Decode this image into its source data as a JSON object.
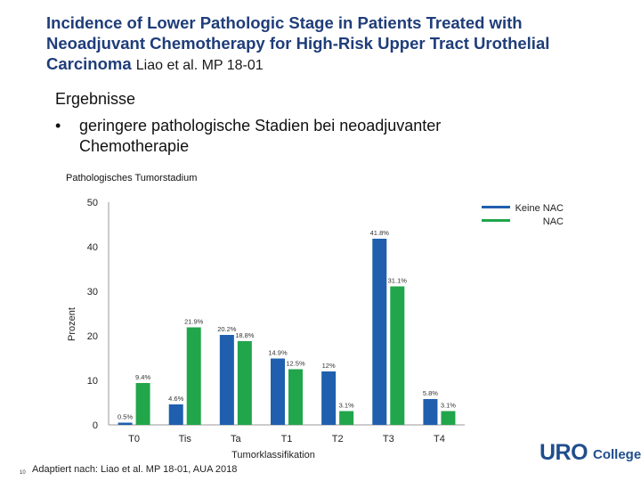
{
  "slide": {
    "title": "Incidence of Lower Pathologic Stage in Patients Treated with Neoadjuvant Chemotherapy for High-Risk Upper Tract Urothelial Carcinoma",
    "title_suffix": "Liao et al. MP 18-01",
    "intro": "Ergebnisse",
    "bullet_mark": "•",
    "bullet": "geringere pathologische Stadien bei neoadjuvanter Chemotherapie",
    "slide_number": "10",
    "source": "Adaptiert nach: Liao et al. MP 18-01, AUA 2018",
    "logo_uro": "URO",
    "logo_rest": "College"
  },
  "colors": {
    "blue": "#1f5fae",
    "green": "#21a64b",
    "title": "#1f3d7a"
  },
  "chart_data": {
    "type": "bar",
    "title": "Pathologisches Tumorstadium",
    "xlabel": "Tumorklassifikation",
    "ylabel": "Prozent",
    "ylim": [
      0,
      50
    ],
    "yticks": [
      0,
      10,
      20,
      30,
      40,
      50
    ],
    "categories": [
      "T0",
      "Tis",
      "Ta",
      "T1",
      "T2",
      "T3",
      "T4"
    ],
    "series": [
      {
        "name": "Keine NAC",
        "color": "#1f5fae",
        "values": [
          0.5,
          4.6,
          20.2,
          14.9,
          12.0,
          41.8,
          5.8
        ],
        "labels": [
          "0.5%",
          "4.6%",
          "20.2%",
          "14.9%",
          "12%",
          "41.8%",
          "5.8%"
        ]
      },
      {
        "name": "NAC",
        "color": "#21a64b",
        "values": [
          9.4,
          21.9,
          18.8,
          12.5,
          3.1,
          31.1,
          3.1
        ],
        "labels": [
          "9.4%",
          "21.9%",
          "18.8%",
          "12.5%",
          "3.1%",
          "31.1%",
          "3.1%"
        ]
      }
    ],
    "legend": "top-right"
  }
}
